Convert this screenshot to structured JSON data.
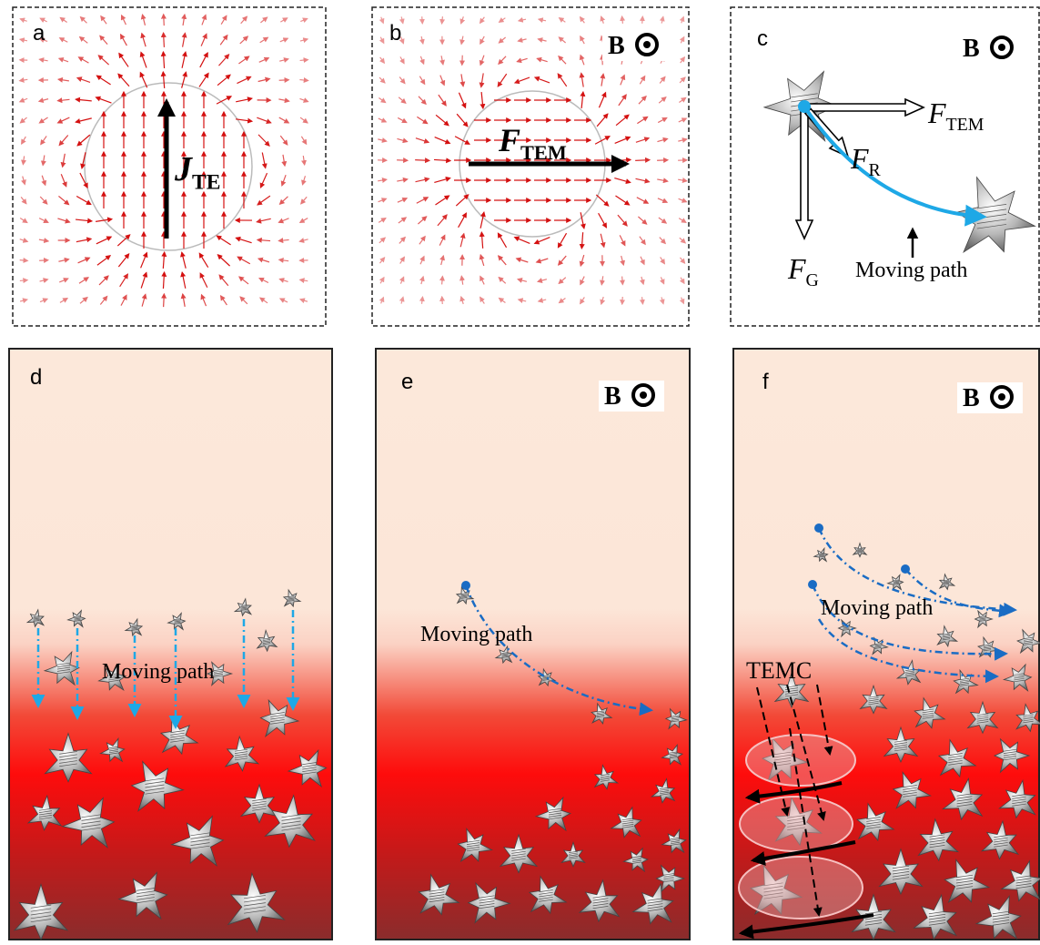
{
  "panels": [
    {
      "label": "a",
      "current": {
        "symbol": "J",
        "subscript": "TE"
      }
    },
    {
      "label": "b",
      "field": "B",
      "force": {
        "symbol": "F",
        "subscript": "TEM"
      }
    },
    {
      "label": "c",
      "field": "B",
      "forces": [
        {
          "symbol": "F",
          "subscript": "TEM"
        },
        {
          "symbol": "F",
          "subscript": "R"
        },
        {
          "symbol": "F",
          "subscript": "G"
        }
      ],
      "path_label": "Moving path"
    },
    {
      "label": "d",
      "path_label": "Moving path"
    },
    {
      "label": "e",
      "field": "B",
      "path_label": "Moving path"
    },
    {
      "label": "f",
      "field": "B",
      "path_label": "Moving path",
      "cluster_label": "TEMC"
    }
  ]
}
